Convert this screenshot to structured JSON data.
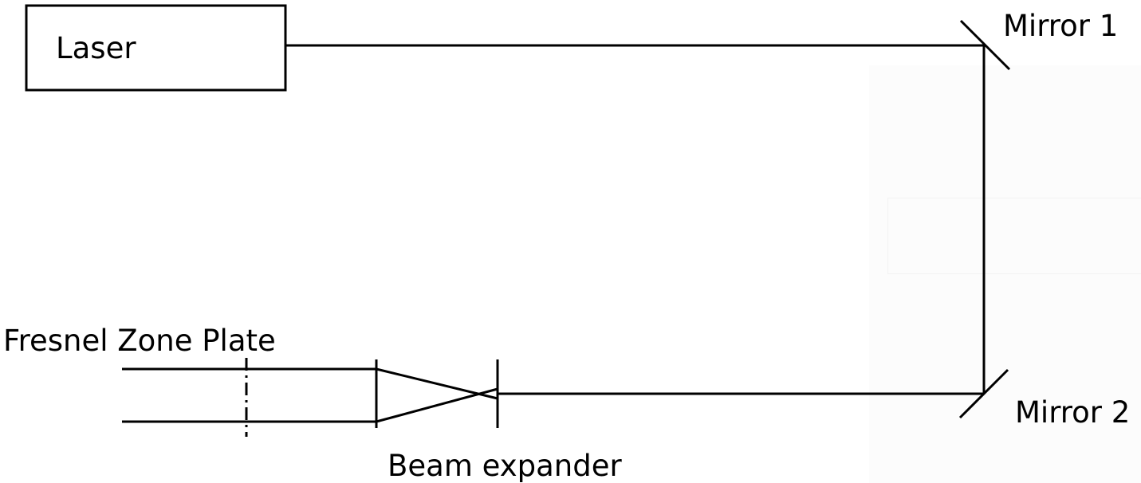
{
  "labels": {
    "laser": "Laser",
    "mirror1": "Mirror 1",
    "mirror2": "Mirror 2",
    "fresnel_zone_plate": "Fresnel Zone Plate",
    "beam_expander": "Beam expander"
  },
  "colors": {
    "line": "#000000",
    "background": "#ffffff"
  }
}
